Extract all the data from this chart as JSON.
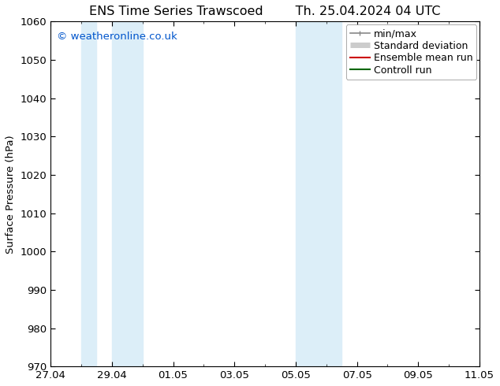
{
  "title_left": "ENS Time Series Trawscoed",
  "title_right": "Th. 25.04.2024 04 UTC",
  "ylabel": "Surface Pressure (hPa)",
  "ylim": [
    970,
    1060
  ],
  "yticks": [
    970,
    980,
    990,
    1000,
    1010,
    1020,
    1030,
    1040,
    1050,
    1060
  ],
  "xtick_labels": [
    "27.04",
    "29.04",
    "01.05",
    "03.05",
    "05.05",
    "07.05",
    "09.05",
    "11.05"
  ],
  "xtick_positions": [
    0,
    2,
    4,
    6,
    8,
    10,
    12,
    14
  ],
  "x_minor_positions": [
    1,
    3,
    5,
    7,
    9,
    11,
    13
  ],
  "xlim": [
    0,
    14
  ],
  "shaded_bands": [
    {
      "xstart": 1.0,
      "xend": 1.5,
      "color": "#dceef8"
    },
    {
      "xstart": 2.0,
      "xend": 3.0,
      "color": "#dceef8"
    },
    {
      "xstart": 8.0,
      "xend": 9.0,
      "color": "#dceef8"
    },
    {
      "xstart": 9.0,
      "xend": 9.5,
      "color": "#dceef8"
    }
  ],
  "watermark": "© weatheronline.co.uk",
  "watermark_color": "#0055cc",
  "legend_entries": [
    {
      "label": "min/max",
      "color": "#888888",
      "lw": 1.2
    },
    {
      "label": "Standard deviation",
      "color": "#cccccc",
      "lw": 5
    },
    {
      "label": "Ensemble mean run",
      "color": "#cc0000",
      "lw": 1.5
    },
    {
      "label": "Controll run",
      "color": "#006600",
      "lw": 1.5
    }
  ],
  "bg_color": "#ffffff",
  "plot_bg_color": "#ffffff",
  "font_size": 9.5,
  "title_font_size": 11.5
}
